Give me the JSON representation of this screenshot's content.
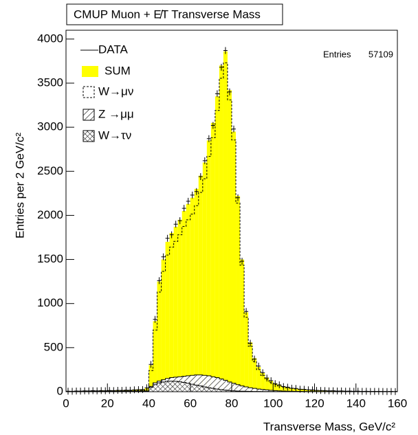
{
  "chart_data": {
    "type": "histogram",
    "title": "CMUP Muon + E̸T Transverse Mass",
    "xlabel": "Transverse Mass, GeV/c²",
    "ylabel": "Entries per 2 GeV/c²",
    "stats": {
      "label": "Entries",
      "value": 57109
    },
    "bins": [
      0,
      2,
      4,
      6,
      8,
      10,
      12,
      14,
      16,
      18,
      20,
      22,
      24,
      26,
      28,
      30,
      32,
      34,
      36,
      38,
      40,
      42,
      44,
      46,
      48,
      50,
      52,
      54,
      56,
      58,
      60,
      62,
      64,
      66,
      68,
      70,
      72,
      74,
      76,
      78,
      80,
      82,
      84,
      86,
      88,
      90,
      92,
      94,
      96,
      98,
      100,
      102,
      104,
      106,
      108,
      110,
      112,
      114,
      116,
      118,
      120,
      122,
      124,
      126,
      128,
      130,
      132,
      134,
      136,
      138,
      140,
      142,
      144,
      146,
      148,
      150,
      152,
      154,
      156,
      158,
      160
    ],
    "xlim": [
      0,
      160
    ],
    "xticks": [
      0,
      20,
      40,
      60,
      80,
      100,
      120,
      140,
      160
    ],
    "ylim": [
      0,
      4100
    ],
    "yticks": [
      0,
      500,
      1000,
      1500,
      2000,
      2500,
      3000,
      3500,
      4000
    ],
    "series": [
      {
        "name": "SUM",
        "color": "#ffff00",
        "style": "fill",
        "values": [
          5,
          6,
          7,
          8,
          9,
          10,
          10,
          11,
          12,
          12,
          13,
          14,
          15,
          16,
          17,
          18,
          20,
          22,
          25,
          40,
          300,
          800,
          1250,
          1500,
          1700,
          1800,
          1870,
          1950,
          2050,
          2130,
          2200,
          2300,
          2450,
          2600,
          2850,
          3050,
          3350,
          3700,
          3860,
          3420,
          2950,
          2220,
          1500,
          900,
          560,
          380,
          280,
          210,
          160,
          120,
          95,
          75,
          60,
          50,
          42,
          35,
          30,
          26,
          22,
          19,
          16,
          14,
          12,
          11,
          10,
          9,
          8,
          7,
          7,
          6,
          6,
          5,
          5,
          4,
          4,
          4,
          3,
          3,
          3,
          3
        ]
      },
      {
        "name": "W→μν",
        "color": "#000000",
        "style": "dashed",
        "values": [
          3,
          4,
          5,
          5,
          6,
          7,
          7,
          7,
          8,
          8,
          8,
          9,
          10,
          10,
          11,
          11,
          13,
          14,
          17,
          30,
          240,
          700,
          1130,
          1365,
          1550,
          1640,
          1705,
          1780,
          1875,
          1950,
          2015,
          2110,
          2260,
          2415,
          2670,
          2880,
          3190,
          3555,
          3730,
          3310,
          2855,
          2140,
          1435,
          845,
          515,
          342,
          250,
          185,
          140,
          104,
          82,
          65,
          52,
          44,
          37,
          31,
          26,
          23,
          19,
          16,
          14,
          12,
          10,
          9,
          9,
          8,
          7,
          6,
          6,
          5,
          5,
          4,
          4,
          4,
          4,
          4,
          3,
          3,
          3,
          3
        ]
      },
      {
        "name": "Z →μμ",
        "color": "#000000",
        "style": "hatch",
        "values": [
          2,
          2,
          2,
          3,
          3,
          3,
          3,
          4,
          4,
          4,
          5,
          5,
          5,
          6,
          6,
          7,
          7,
          8,
          8,
          10,
          60,
          100,
          120,
          135,
          150,
          160,
          165,
          170,
          175,
          180,
          185,
          190,
          190,
          185,
          180,
          170,
          160,
          145,
          130,
          110,
          95,
          80,
          65,
          55,
          45,
          38,
          30,
          25,
          20,
          16,
          13,
          10,
          8,
          6,
          5,
          4,
          4,
          3,
          3,
          3,
          2,
          2,
          2,
          2,
          1,
          1,
          1,
          1,
          1,
          1,
          1,
          1,
          1,
          0,
          0,
          0,
          0,
          0,
          0,
          0
        ]
      },
      {
        "name": "W→τν",
        "color": "#000000",
        "style": "crosshatch",
        "values": [
          1,
          1,
          1,
          1,
          2,
          2,
          2,
          2,
          2,
          3,
          3,
          3,
          3,
          3,
          3,
          4,
          4,
          4,
          4,
          8,
          50,
          80,
          100,
          110,
          118,
          120,
          118,
          112,
          105,
          95,
          85,
          75,
          65,
          55,
          45,
          38,
          30,
          24,
          18,
          14,
          10,
          8,
          6,
          5,
          4,
          3,
          3,
          2,
          2,
          2,
          1,
          1,
          1,
          1,
          1,
          1,
          1,
          0,
          0,
          0,
          0,
          0,
          0,
          0,
          0,
          0,
          0,
          0,
          0,
          0,
          0,
          0,
          0,
          0,
          0,
          0,
          0,
          0,
          0,
          0
        ]
      },
      {
        "name": "DATA",
        "color": "#000000",
        "style": "points",
        "values": [
          6,
          5,
          8,
          7,
          10,
          9,
          12,
          10,
          13,
          11,
          14,
          13,
          16,
          15,
          18,
          17,
          21,
          23,
          24,
          45,
          310,
          820,
          1260,
          1530,
          1740,
          1780,
          1900,
          1940,
          2080,
          2160,
          2230,
          2270,
          2440,
          2620,
          2870,
          3020,
          3380,
          3680,
          3870,
          3400,
          2980,
          2200,
          1480,
          910,
          550,
          370,
          290,
          215,
          155,
          125,
          92,
          78,
          58,
          52,
          40,
          37,
          28,
          27,
          21,
          20,
          15,
          14,
          13,
          10,
          11,
          8,
          9,
          6,
          7,
          5,
          6,
          4,
          5,
          3,
          4,
          4,
          3,
          2,
          3,
          2
        ]
      }
    ]
  }
}
